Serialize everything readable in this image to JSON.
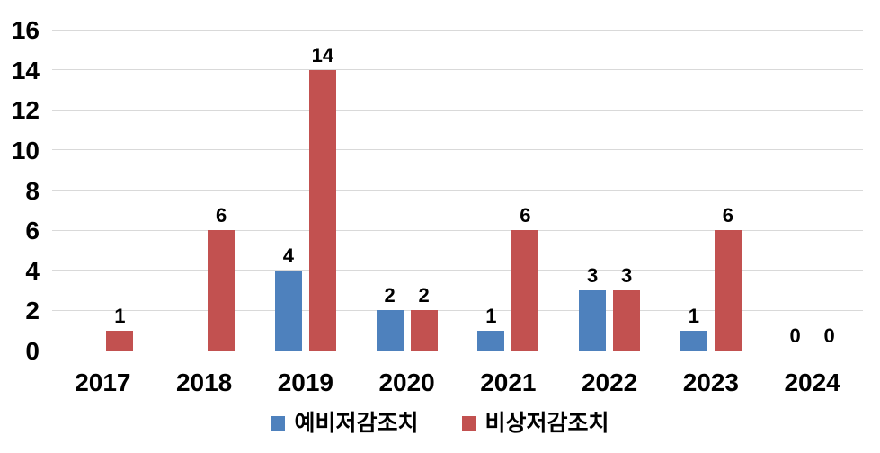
{
  "chart_data": {
    "type": "bar",
    "title": "",
    "xlabel": "",
    "ylabel": "",
    "categories": [
      "2017",
      "2018",
      "2019",
      "2020",
      "2021",
      "2022",
      "2023",
      "2024"
    ],
    "series": [
      {
        "id": "preliminary-reduction-measure",
        "name": "예비저감조치",
        "color": "#4E81BD",
        "values": [
          null,
          null,
          4,
          2,
          1,
          3,
          1,
          0
        ]
      },
      {
        "id": "emergency-reduction-measure",
        "name": "비상저감조치",
        "color": "#C25150",
        "values": [
          1,
          6,
          14,
          2,
          6,
          3,
          6,
          0
        ]
      }
    ],
    "ylim": [
      0,
      16
    ],
    "ytick_step": 2,
    "ytick_labels": [
      "0",
      "2",
      "4",
      "6",
      "8",
      "10",
      "12",
      "14",
      "16"
    ],
    "grid": true,
    "legend_position": "bottom",
    "colors": {
      "gridline": "#D9D9D9",
      "axis_text": "#000000",
      "background": "#FFFFFF"
    }
  }
}
